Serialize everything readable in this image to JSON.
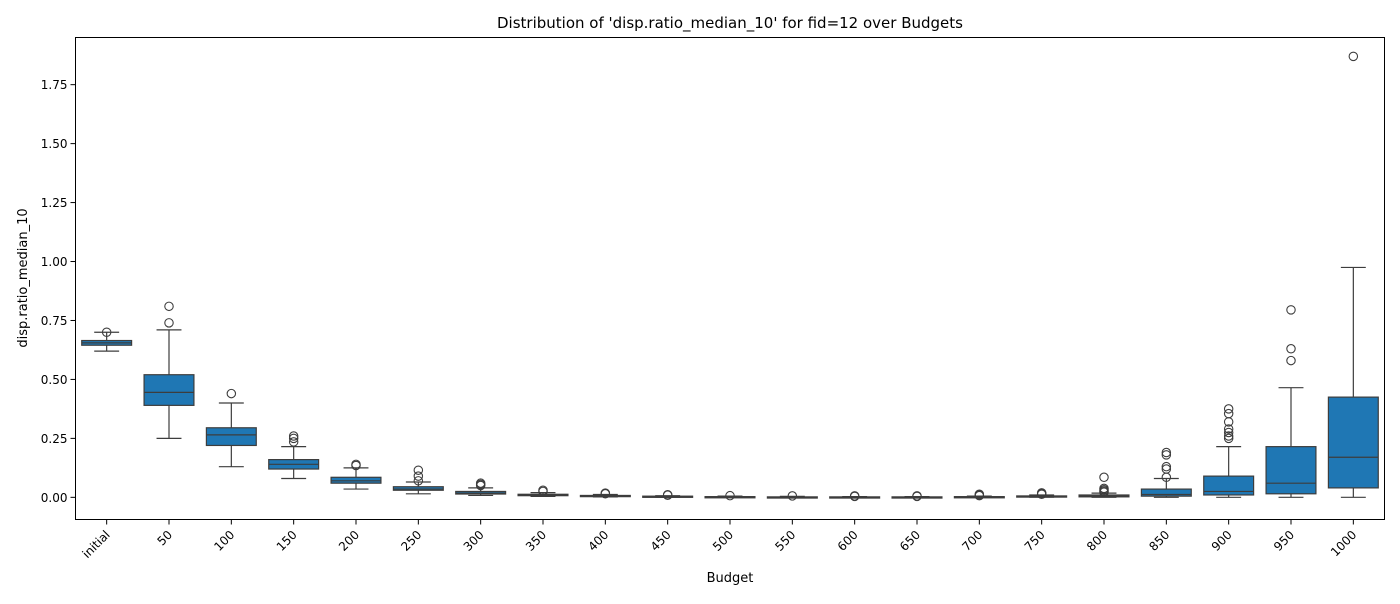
{
  "chart_data": {
    "type": "box",
    "title": "Distribution of 'disp.ratio_median_10' for fid=12 over Budgets",
    "xlabel": "Budget",
    "ylabel": "disp.ratio_median_10",
    "ylim": [
      -0.094,
      1.95
    ],
    "yticks": [
      "0.00",
      "0.25",
      "0.50",
      "0.75",
      "1.00",
      "1.25",
      "1.50",
      "1.75"
    ],
    "ytick_values": [
      0,
      0.25,
      0.5,
      0.75,
      1.0,
      1.25,
      1.5,
      1.75
    ],
    "box_color": "#1f77b4",
    "categories": [
      "initial",
      "50",
      "100",
      "150",
      "200",
      "250",
      "300",
      "350",
      "400",
      "450",
      "500",
      "550",
      "600",
      "650",
      "700",
      "750",
      "800",
      "850",
      "900",
      "950",
      "1000"
    ],
    "boxes": [
      {
        "category": "initial",
        "whislo": 0.62,
        "q1": 0.645,
        "median": 0.655,
        "q3": 0.665,
        "whishi": 0.7,
        "fliers": [
          0.7
        ]
      },
      {
        "category": "50",
        "whislo": 0.25,
        "q1": 0.39,
        "median": 0.445,
        "q3": 0.52,
        "whishi": 0.71,
        "fliers": [
          0.74,
          0.81
        ]
      },
      {
        "category": "100",
        "whislo": 0.13,
        "q1": 0.22,
        "median": 0.265,
        "q3": 0.295,
        "whishi": 0.4,
        "fliers": [
          0.44
        ]
      },
      {
        "category": "150",
        "whislo": 0.08,
        "q1": 0.12,
        "median": 0.14,
        "q3": 0.16,
        "whishi": 0.215,
        "fliers": [
          0.235,
          0.25,
          0.26
        ]
      },
      {
        "category": "200",
        "whislo": 0.035,
        "q1": 0.06,
        "median": 0.07,
        "q3": 0.085,
        "whishi": 0.125,
        "fliers": [
          0.135,
          0.14
        ]
      },
      {
        "category": "250",
        "whislo": 0.015,
        "q1": 0.03,
        "median": 0.035,
        "q3": 0.045,
        "whishi": 0.065,
        "fliers": [
          0.07,
          0.09,
          0.115
        ]
      },
      {
        "category": "300",
        "whislo": 0.008,
        "q1": 0.014,
        "median": 0.018,
        "q3": 0.025,
        "whishi": 0.04,
        "fliers": [
          0.05,
          0.055,
          0.06
        ]
      },
      {
        "category": "350",
        "whislo": 0.004,
        "q1": 0.007,
        "median": 0.01,
        "q3": 0.013,
        "whishi": 0.02,
        "fliers": [
          0.025,
          0.03
        ]
      },
      {
        "category": "400",
        "whislo": 0.002,
        "q1": 0.004,
        "median": 0.006,
        "q3": 0.008,
        "whishi": 0.012,
        "fliers": [
          0.015,
          0.018
        ]
      },
      {
        "category": "450",
        "whislo": 0.001,
        "q1": 0.002,
        "median": 0.003,
        "q3": 0.005,
        "whishi": 0.007,
        "fliers": [
          0.009,
          0.011
        ]
      },
      {
        "category": "500",
        "whislo": 0.0,
        "q1": 0.001,
        "median": 0.002,
        "q3": 0.003,
        "whishi": 0.005,
        "fliers": [
          0.007
        ]
      },
      {
        "category": "550",
        "whislo": 0.0,
        "q1": 0.001,
        "median": 0.001,
        "q3": 0.002,
        "whishi": 0.004,
        "fliers": [
          0.006
        ]
      },
      {
        "category": "600",
        "whislo": 0.0,
        "q1": 0.0,
        "median": 0.001,
        "q3": 0.002,
        "whishi": 0.003,
        "fliers": [
          0.004,
          0.006
        ]
      },
      {
        "category": "650",
        "whislo": 0.0,
        "q1": 0.0,
        "median": 0.001,
        "q3": 0.002,
        "whishi": 0.003,
        "fliers": [
          0.004,
          0.006
        ]
      },
      {
        "category": "700",
        "whislo": 0.0,
        "q1": 0.001,
        "median": 0.002,
        "q3": 0.003,
        "whishi": 0.005,
        "fliers": [
          0.007,
          0.01,
          0.013
        ]
      },
      {
        "category": "750",
        "whislo": 0.001,
        "q1": 0.002,
        "median": 0.004,
        "q3": 0.006,
        "whishi": 0.01,
        "fliers": [
          0.013,
          0.016,
          0.019
        ]
      },
      {
        "category": "800",
        "whislo": 0.0,
        "q1": 0.002,
        "median": 0.005,
        "q3": 0.01,
        "whishi": 0.018,
        "fliers": [
          0.022,
          0.027,
          0.032,
          0.038,
          0.085
        ]
      },
      {
        "category": "850",
        "whislo": 0.0,
        "q1": 0.005,
        "median": 0.012,
        "q3": 0.035,
        "whishi": 0.08,
        "fliers": [
          0.085,
          0.12,
          0.13,
          0.18,
          0.19
        ]
      },
      {
        "category": "900",
        "whislo": 0.0,
        "q1": 0.01,
        "median": 0.025,
        "q3": 0.09,
        "whishi": 0.215,
        "fliers": [
          0.25,
          0.26,
          0.275,
          0.29,
          0.32,
          0.355,
          0.375
        ]
      },
      {
        "category": "950",
        "whislo": 0.0,
        "q1": 0.015,
        "median": 0.06,
        "q3": 0.215,
        "whishi": 0.465,
        "fliers": [
          0.58,
          0.63,
          0.795
        ]
      },
      {
        "category": "1000",
        "whislo": 0.0,
        "q1": 0.04,
        "median": 0.17,
        "q3": 0.425,
        "whishi": 0.975,
        "fliers": [
          1.87
        ]
      }
    ]
  }
}
